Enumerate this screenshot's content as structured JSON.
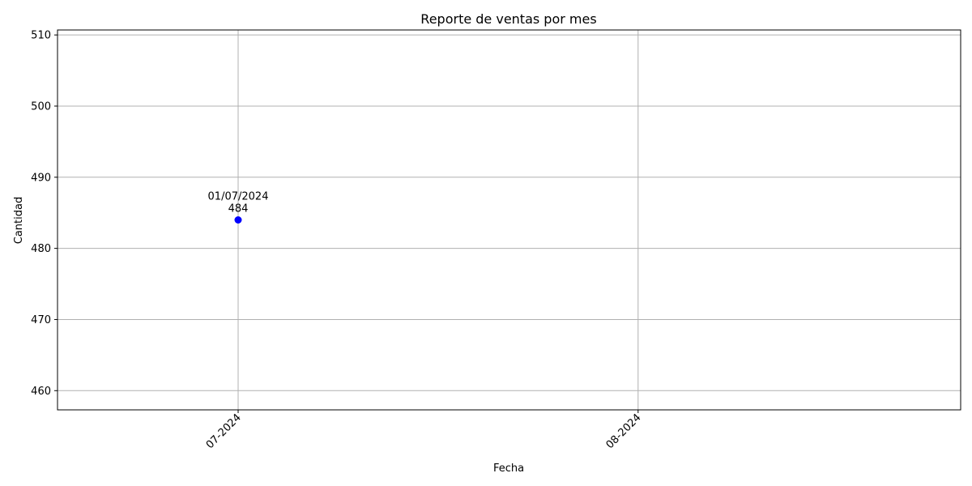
{
  "chart_data": {
    "type": "line",
    "title": "Reporte de ventas por mes",
    "xlabel": "Fecha",
    "ylabel": "Cantidad",
    "x_axis": {
      "kind": "date",
      "range": [
        "2024-06-17",
        "2024-08-26"
      ],
      "ticks": [
        {
          "value": "2024-07-01",
          "label": "07-2024"
        },
        {
          "value": "2024-08-01",
          "label": "08-2024"
        }
      ],
      "tick_rotation": 45
    },
    "y_axis": {
      "range": [
        457.3,
        510.7
      ],
      "ticks": [
        460,
        470,
        480,
        490,
        500,
        510
      ]
    },
    "grid": true,
    "legend": "none",
    "colors": {
      "marker": "#0000ff",
      "grid": "#b0b0b0",
      "axes": "#000000"
    },
    "series": [
      {
        "marker": "circle",
        "points": [
          {
            "x": "2024-07-01",
            "y": 484
          }
        ]
      }
    ],
    "annotations": [
      {
        "x": "2024-07-01",
        "y": 484,
        "lines": [
          "01/07/2024",
          "484"
        ]
      }
    ]
  }
}
